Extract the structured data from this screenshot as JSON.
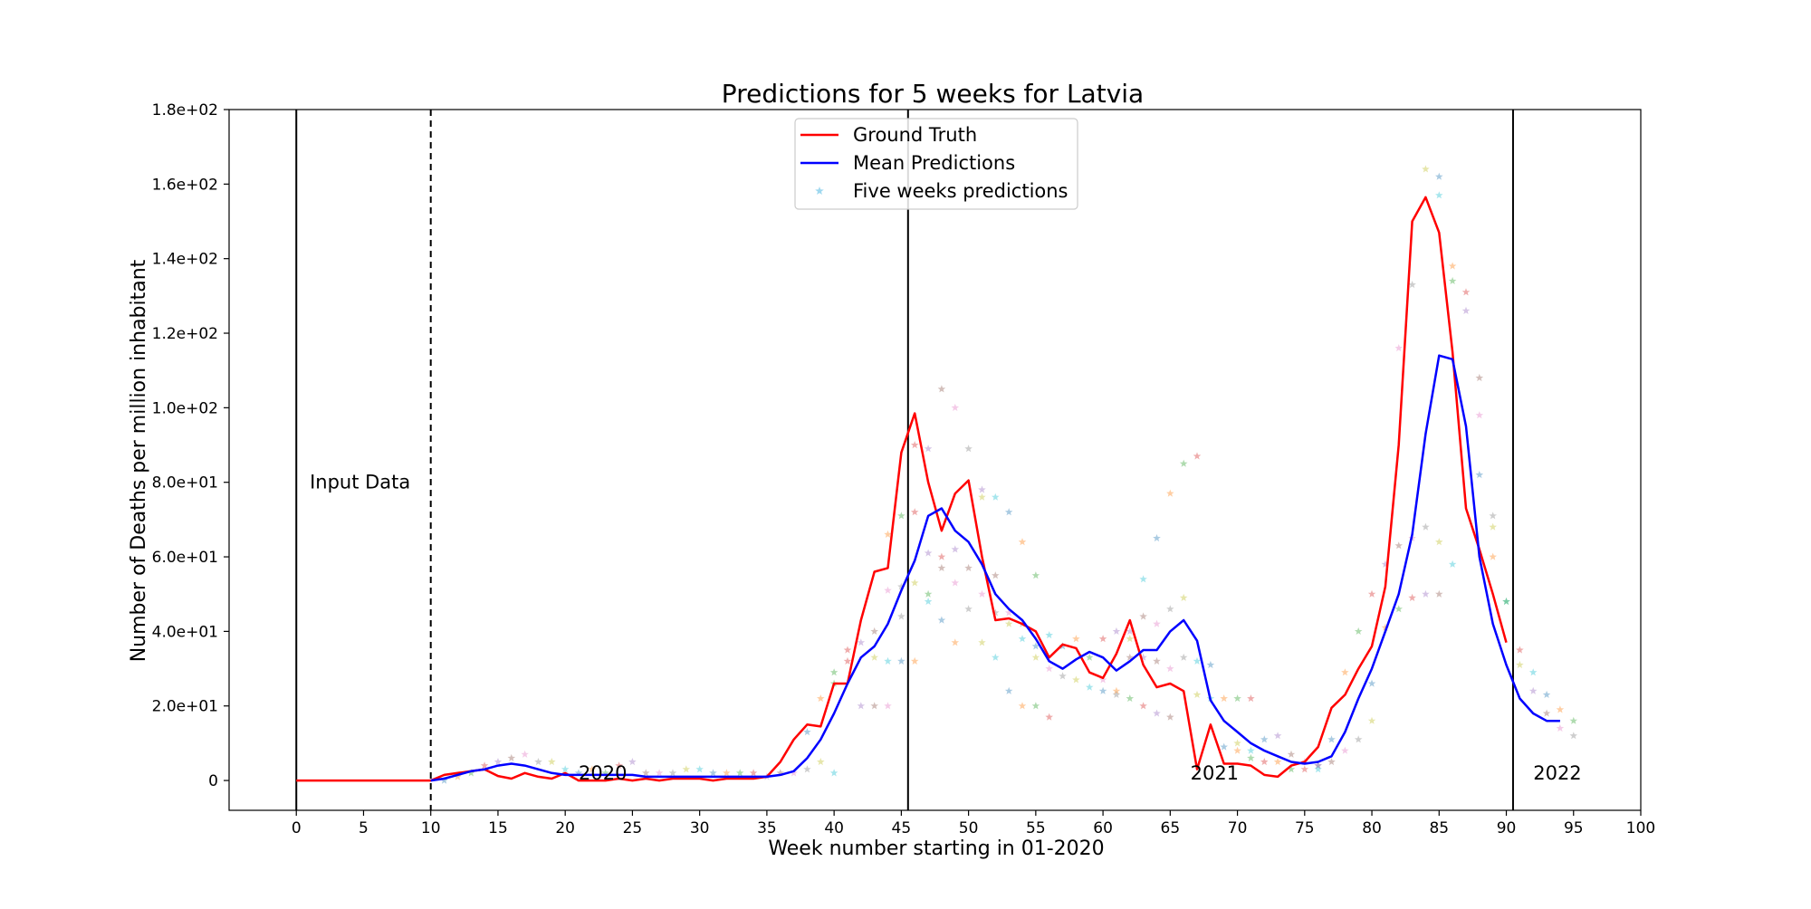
{
  "chart_data": {
    "type": "line",
    "title": "Predictions for 5 weeks for Latvia",
    "xlabel": "Week number starting in 01-2020",
    "ylabel": "Number of Deaths per million inhabitant",
    "xlim": [
      -5,
      100
    ],
    "ylim": [
      -8,
      180
    ],
    "x_ticks": [
      0,
      5,
      10,
      15,
      20,
      25,
      30,
      35,
      40,
      45,
      50,
      55,
      60,
      65,
      70,
      75,
      80,
      85,
      90,
      95,
      100
    ],
    "x_tick_labels": [
      "0",
      "5",
      "10",
      "15",
      "20",
      "25",
      "30",
      "35",
      "40",
      "45",
      "50",
      "55",
      "60",
      "65",
      "70",
      "75",
      "80",
      "85",
      "90",
      "95",
      "100"
    ],
    "y_ticks": [
      0,
      20,
      40,
      60,
      80,
      100,
      120,
      140,
      160,
      180
    ],
    "y_tick_labels": [
      "0",
      "2.0e+01",
      "4.0e+01",
      "6.0e+01",
      "8.0e+01",
      "1.0e+02",
      "1.2e+02",
      "1.4e+02",
      "1.6e+02",
      "1.8e+02"
    ],
    "grid": false,
    "legend_position": "top-center",
    "legend": [
      {
        "label": "Ground Truth",
        "kind": "line",
        "color": "#ff0000"
      },
      {
        "label": "Mean Predictions",
        "kind": "line",
        "color": "#0000ff"
      },
      {
        "label": "Five weeks predictions",
        "kind": "star",
        "color": "#87ceeb"
      }
    ],
    "annotations": [
      {
        "text": "Input Data",
        "x": 1,
        "y": 80
      },
      {
        "text": "2020",
        "x": 21,
        "y": 2
      },
      {
        "text": "2021",
        "x": 66.5,
        "y": 2
      },
      {
        "text": "2022",
        "x": 92,
        "y": 2
      }
    ],
    "vertical_lines": [
      {
        "x": 0,
        "style": "solid"
      },
      {
        "x": 10,
        "style": "dashed"
      },
      {
        "x": 45.5,
        "style": "solid"
      },
      {
        "x": 90.5,
        "style": "solid"
      }
    ],
    "series": [
      {
        "name": "Ground Truth",
        "color": "#ff0000",
        "x": [
          0,
          1,
          2,
          3,
          4,
          5,
          6,
          7,
          8,
          9,
          10,
          11,
          12,
          13,
          14,
          15,
          16,
          17,
          18,
          19,
          20,
          21,
          22,
          23,
          24,
          25,
          26,
          27,
          28,
          29,
          30,
          31,
          32,
          33,
          34,
          35,
          36,
          37,
          38,
          39,
          40,
          41,
          42,
          43,
          44,
          45,
          46,
          47,
          48,
          49,
          50,
          51,
          52,
          53,
          54,
          55,
          56,
          57,
          58,
          59,
          60,
          61,
          62,
          63,
          64,
          65,
          66,
          67,
          68,
          69,
          70,
          71,
          72,
          73,
          74,
          75,
          76,
          77,
          78,
          79,
          80,
          81,
          82,
          83,
          84,
          85,
          86,
          87,
          88,
          89,
          90
        ],
        "y": [
          0,
          0,
          0,
          0,
          0,
          0,
          0,
          0,
          0,
          0,
          0,
          1.5,
          2,
          2.5,
          3,
          1.2,
          0.5,
          2,
          1,
          0.5,
          2,
          0,
          0,
          0,
          0.5,
          0,
          0.5,
          0,
          0.5,
          0.5,
          0.5,
          0,
          0.5,
          0.5,
          0.5,
          1,
          5,
          11,
          15,
          14.5,
          26,
          26,
          43,
          56,
          57,
          88,
          98.5,
          80,
          67,
          77,
          80.5,
          60,
          43,
          43.5,
          42,
          40,
          33,
          36.5,
          35.5,
          29,
          27.5,
          34,
          43,
          31,
          25,
          26,
          24,
          3,
          15,
          4.5,
          4.5,
          4,
          1.5,
          1,
          4,
          5,
          9,
          19.5,
          23,
          30,
          36,
          52,
          90,
          150,
          156.5,
          147,
          115,
          73,
          62,
          50,
          37
        ]
      },
      {
        "name": "Mean Predictions",
        "color": "#0000ff",
        "x": [
          10,
          11,
          12,
          13,
          14,
          15,
          16,
          17,
          18,
          19,
          20,
          21,
          22,
          23,
          24,
          25,
          26,
          27,
          28,
          29,
          30,
          31,
          32,
          33,
          34,
          35,
          36,
          37,
          38,
          39,
          40,
          41,
          42,
          43,
          44,
          45,
          46,
          47,
          48,
          49,
          50,
          51,
          52,
          53,
          54,
          55,
          56,
          57,
          58,
          59,
          60,
          61,
          62,
          63,
          64,
          65,
          66,
          67,
          68,
          69,
          70,
          71,
          72,
          73,
          74,
          75,
          76,
          77,
          78,
          79,
          80,
          81,
          82,
          83,
          84,
          85,
          86,
          87,
          88,
          89,
          90,
          91,
          92,
          93,
          94
        ],
        "y": [
          0,
          0.5,
          1.5,
          2.5,
          3,
          4,
          4.5,
          4,
          3,
          2,
          1.5,
          1.5,
          1.5,
          1.5,
          1.5,
          1.5,
          1,
          1,
          1,
          1,
          1,
          1,
          1,
          1,
          1,
          1,
          1.5,
          2.5,
          6,
          11,
          18,
          26,
          33,
          36,
          42,
          51,
          59,
          71,
          73,
          67,
          64,
          58,
          50,
          46,
          43,
          38,
          32,
          30,
          32.5,
          34.5,
          33,
          29.5,
          32,
          35,
          35,
          40,
          43,
          37.5,
          21.5,
          16,
          13,
          10,
          8,
          6.5,
          5,
          4.5,
          5,
          6.5,
          13,
          22,
          30,
          40,
          50,
          66,
          93,
          114,
          113,
          95,
          60,
          42,
          31,
          22,
          18,
          16,
          16
        ]
      }
    ],
    "five_weeks_predictions": {
      "marker": "star",
      "colors": [
        "#1f77b4",
        "#ff7f0e",
        "#2ca02c",
        "#d62728",
        "#9467bd",
        "#8c564b",
        "#e377c2",
        "#7f7f7f",
        "#bcbd22",
        "#17becf"
      ],
      "points": [
        [
          11,
          0
        ],
        [
          12,
          1
        ],
        [
          13,
          2
        ],
        [
          14,
          4
        ],
        [
          15,
          5
        ],
        [
          16,
          6
        ],
        [
          17,
          7
        ],
        [
          18,
          5
        ],
        [
          19,
          5
        ],
        [
          20,
          3
        ],
        [
          21,
          2
        ],
        [
          22,
          3
        ],
        [
          23,
          2
        ],
        [
          24,
          4
        ],
        [
          25,
          5
        ],
        [
          26,
          2
        ],
        [
          27,
          2
        ],
        [
          28,
          2
        ],
        [
          29,
          3
        ],
        [
          30,
          3
        ],
        [
          31,
          2
        ],
        [
          32,
          2
        ],
        [
          33,
          2
        ],
        [
          34,
          2
        ],
        [
          35,
          1
        ],
        [
          36,
          2
        ],
        [
          37,
          2
        ],
        [
          38,
          3
        ],
        [
          39,
          5
        ],
        [
          40,
          2
        ],
        [
          38,
          13
        ],
        [
          39,
          22
        ],
        [
          40,
          26
        ],
        [
          41,
          35
        ],
        [
          42,
          37
        ],
        [
          43,
          40
        ],
        [
          44,
          51
        ],
        [
          45,
          52
        ],
        [
          46,
          53
        ],
        [
          47,
          48
        ],
        [
          48,
          43
        ],
        [
          49,
          37
        ],
        [
          40,
          29
        ],
        [
          41,
          32
        ],
        [
          42,
          20
        ],
        [
          43,
          20
        ],
        [
          44,
          20
        ],
        [
          45,
          44
        ],
        [
          43,
          33
        ],
        [
          44,
          32
        ],
        [
          45,
          32
        ],
        [
          46,
          32
        ],
        [
          47,
          50
        ],
        [
          48,
          60
        ],
        [
          49,
          62
        ],
        [
          50,
          57
        ],
        [
          51,
          50
        ],
        [
          52,
          45
        ],
        [
          53,
          42
        ],
        [
          54,
          38
        ],
        [
          55,
          36
        ],
        [
          44,
          66
        ],
        [
          45,
          71
        ],
        [
          46,
          90
        ],
        [
          47,
          89
        ],
        [
          48,
          105
        ],
        [
          49,
          100
        ],
        [
          50,
          89
        ],
        [
          51,
          76
        ],
        [
          52,
          76
        ],
        [
          53,
          72
        ],
        [
          54,
          64
        ],
        [
          55,
          55
        ],
        [
          46,
          72
        ],
        [
          47,
          61
        ],
        [
          48,
          57
        ],
        [
          49,
          53
        ],
        [
          50,
          46
        ],
        [
          51,
          37
        ],
        [
          52,
          33
        ],
        [
          53,
          24
        ],
        [
          54,
          20
        ],
        [
          55,
          20
        ],
        [
          56,
          17
        ],
        [
          51,
          78
        ],
        [
          52,
          55
        ],
        [
          53,
          45
        ],
        [
          54,
          42
        ],
        [
          55,
          33
        ],
        [
          56,
          39
        ],
        [
          57,
          36
        ],
        [
          58,
          38
        ],
        [
          59,
          33
        ],
        [
          60,
          38
        ],
        [
          61,
          40
        ],
        [
          62,
          33
        ],
        [
          56,
          30
        ],
        [
          57,
          28
        ],
        [
          58,
          27
        ],
        [
          59,
          25
        ],
        [
          60,
          24
        ],
        [
          61,
          24
        ],
        [
          62,
          22
        ],
        [
          63,
          20
        ],
        [
          64,
          18
        ],
        [
          65,
          17
        ],
        [
          60,
          27
        ],
        [
          61,
          23
        ],
        [
          62,
          38
        ],
        [
          63,
          54
        ],
        [
          64,
          65
        ],
        [
          65,
          77
        ],
        [
          66,
          85
        ],
        [
          67,
          87
        ],
        [
          62,
          40
        ],
        [
          63,
          44
        ],
        [
          64,
          42
        ],
        [
          65,
          46
        ],
        [
          66,
          49
        ],
        [
          67,
          32
        ],
        [
          68,
          31
        ],
        [
          69,
          22
        ],
        [
          70,
          22
        ],
        [
          71,
          22
        ],
        [
          63,
          33
        ],
        [
          64,
          32
        ],
        [
          65,
          30
        ],
        [
          66,
          33
        ],
        [
          67,
          23
        ],
        [
          68,
          22
        ],
        [
          69,
          9
        ],
        [
          70,
          8
        ],
        [
          71,
          6
        ],
        [
          72,
          5
        ],
        [
          73,
          12
        ],
        [
          74,
          7
        ],
        [
          75,
          5
        ],
        [
          76,
          4
        ],
        [
          70,
          10
        ],
        [
          71,
          8
        ],
        [
          72,
          11
        ],
        [
          73,
          5
        ],
        [
          74,
          3
        ],
        [
          75,
          3
        ],
        [
          76,
          4
        ],
        [
          77,
          5
        ],
        [
          78,
          8
        ],
        [
          79,
          11
        ],
        [
          80,
          16
        ],
        [
          76,
          3
        ],
        [
          77,
          11
        ],
        [
          78,
          29
        ],
        [
          79,
          40
        ],
        [
          80,
          50
        ],
        [
          81,
          58
        ],
        [
          82,
          63
        ],
        [
          83,
          65
        ],
        [
          84,
          68
        ],
        [
          85,
          64
        ],
        [
          86,
          58
        ],
        [
          80,
          26
        ],
        [
          81,
          41
        ],
        [
          82,
          46
        ],
        [
          83,
          49
        ],
        [
          84,
          50
        ],
        [
          85,
          50
        ],
        [
          82,
          116
        ],
        [
          83,
          133
        ],
        [
          84,
          164
        ],
        [
          85,
          157
        ],
        [
          85,
          162
        ],
        [
          86,
          138
        ],
        [
          86,
          134
        ],
        [
          87,
          131
        ],
        [
          87,
          126
        ],
        [
          88,
          108
        ],
        [
          88,
          98
        ],
        [
          89,
          71
        ],
        [
          89,
          68
        ],
        [
          90,
          48
        ],
        [
          88,
          82
        ],
        [
          89,
          60
        ],
        [
          90,
          48
        ],
        [
          91,
          35
        ],
        [
          92,
          24
        ],
        [
          93,
          18
        ],
        [
          94,
          14
        ],
        [
          95,
          12
        ],
        [
          91,
          31
        ],
        [
          92,
          29
        ],
        [
          93,
          23
        ],
        [
          94,
          19
        ],
        [
          95,
          16
        ]
      ]
    }
  }
}
